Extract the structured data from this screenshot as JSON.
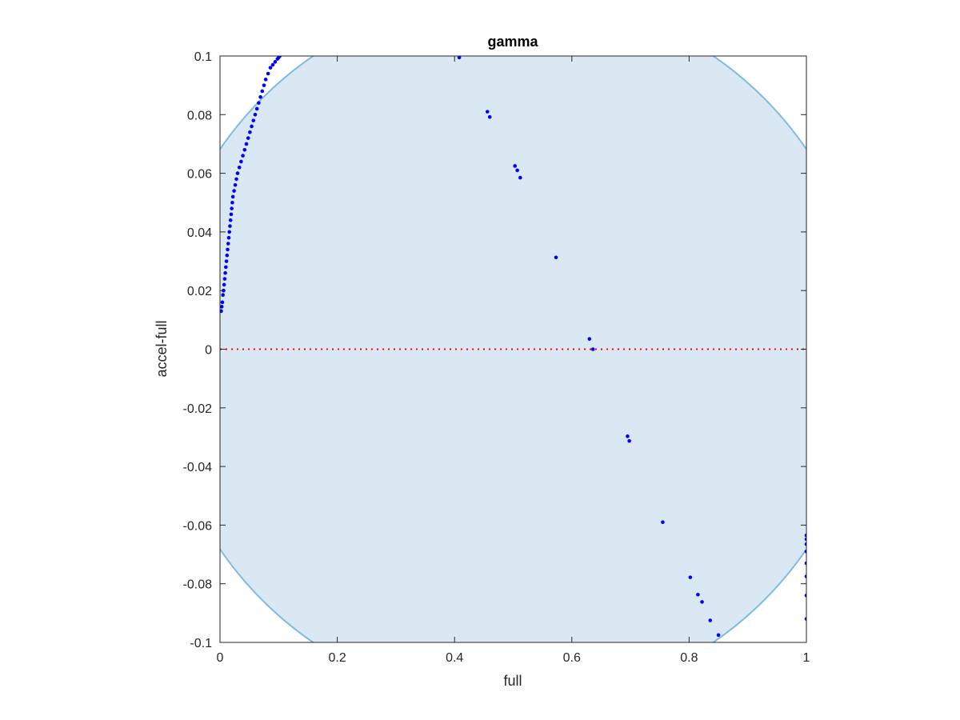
{
  "chart_data": {
    "type": "scatter",
    "title": "gamma",
    "xlabel": "full",
    "ylabel": "accel-full",
    "xlim": [
      0,
      1
    ],
    "ylim": [
      -0.1,
      0.1
    ],
    "xticks": [
      0,
      0.2,
      0.4,
      0.6,
      0.8,
      1
    ],
    "xtick_labels": [
      "0",
      "0.2",
      "0.4",
      "0.6",
      "0.8",
      "1"
    ],
    "yticks": [
      -0.1,
      -0.08,
      -0.06,
      -0.04,
      -0.02,
      0,
      0.02,
      0.04,
      0.06,
      0.08,
      0.1
    ],
    "ytick_labels": [
      "-0.1",
      "-0.08",
      "-0.06",
      "-0.04",
      "-0.02",
      "0",
      "0.02",
      "0.04",
      "0.06",
      "0.08",
      "0.1"
    ],
    "grid": false,
    "reference_line": {
      "y": 0,
      "style": "dotted",
      "color": "#ff0000"
    },
    "region": {
      "shape": "ellipse",
      "center": [
        0.5,
        0
      ],
      "semi_axes": [
        0.605,
        0.121
      ],
      "fill": "#dae8f4",
      "edge": "#7fbadf"
    },
    "series": [
      {
        "color": "#0000ff",
        "points": [
          [
            0.002,
            0.013
          ],
          [
            0.003,
            0.0145
          ],
          [
            0.004,
            0.016
          ],
          [
            0.005,
            0.0185
          ],
          [
            0.006,
            0.02
          ],
          [
            0.007,
            0.022
          ],
          [
            0.008,
            0.024
          ],
          [
            0.009,
            0.026
          ],
          [
            0.01,
            0.028
          ],
          [
            0.011,
            0.03
          ],
          [
            0.012,
            0.032
          ],
          [
            0.013,
            0.034
          ],
          [
            0.014,
            0.036
          ],
          [
            0.015,
            0.038
          ],
          [
            0.016,
            0.04
          ],
          [
            0.017,
            0.042
          ],
          [
            0.018,
            0.044
          ],
          [
            0.019,
            0.046
          ],
          [
            0.02,
            0.048
          ],
          [
            0.021,
            0.05
          ],
          [
            0.022,
            0.052
          ],
          [
            0.024,
            0.054
          ],
          [
            0.026,
            0.056
          ],
          [
            0.028,
            0.058
          ],
          [
            0.03,
            0.06
          ],
          [
            0.033,
            0.062
          ],
          [
            0.036,
            0.064
          ],
          [
            0.039,
            0.066
          ],
          [
            0.042,
            0.068
          ],
          [
            0.045,
            0.07
          ],
          [
            0.048,
            0.072
          ],
          [
            0.051,
            0.074
          ],
          [
            0.054,
            0.076
          ],
          [
            0.057,
            0.078
          ],
          [
            0.06,
            0.08
          ],
          [
            0.063,
            0.082
          ],
          [
            0.066,
            0.084
          ],
          [
            0.069,
            0.086
          ],
          [
            0.072,
            0.088
          ],
          [
            0.075,
            0.09
          ],
          [
            0.078,
            0.092
          ],
          [
            0.082,
            0.094
          ],
          [
            0.086,
            0.096
          ],
          [
            0.09,
            0.097
          ],
          [
            0.094,
            0.098
          ],
          [
            0.098,
            0.099
          ],
          [
            0.1,
            0.0995
          ],
          [
            0.102,
            0.1
          ],
          [
            0.408,
            0.0995
          ],
          [
            0.456,
            0.081
          ],
          [
            0.46,
            0.0792
          ],
          [
            0.503,
            0.0625
          ],
          [
            0.507,
            0.061
          ],
          [
            0.512,
            0.0585
          ],
          [
            0.573,
            0.0313
          ],
          [
            0.63,
            0.0035
          ],
          [
            0.636,
            0.0
          ],
          [
            0.695,
            -0.0297
          ],
          [
            0.698,
            -0.0313
          ],
          [
            0.755,
            -0.059
          ],
          [
            0.802,
            -0.0778
          ],
          [
            0.815,
            -0.0837
          ],
          [
            0.822,
            -0.0862
          ],
          [
            0.836,
            -0.0925
          ],
          [
            0.85,
            -0.0975
          ],
          [
            1.0,
            -0.0635
          ],
          [
            1.0,
            -0.0648
          ],
          [
            1.0,
            -0.0665
          ],
          [
            1.0,
            -0.069
          ],
          [
            1.0,
            -0.073
          ],
          [
            1.0,
            -0.0775
          ],
          [
            1.0,
            -0.084
          ],
          [
            1.0,
            -0.092
          ]
        ]
      }
    ]
  }
}
